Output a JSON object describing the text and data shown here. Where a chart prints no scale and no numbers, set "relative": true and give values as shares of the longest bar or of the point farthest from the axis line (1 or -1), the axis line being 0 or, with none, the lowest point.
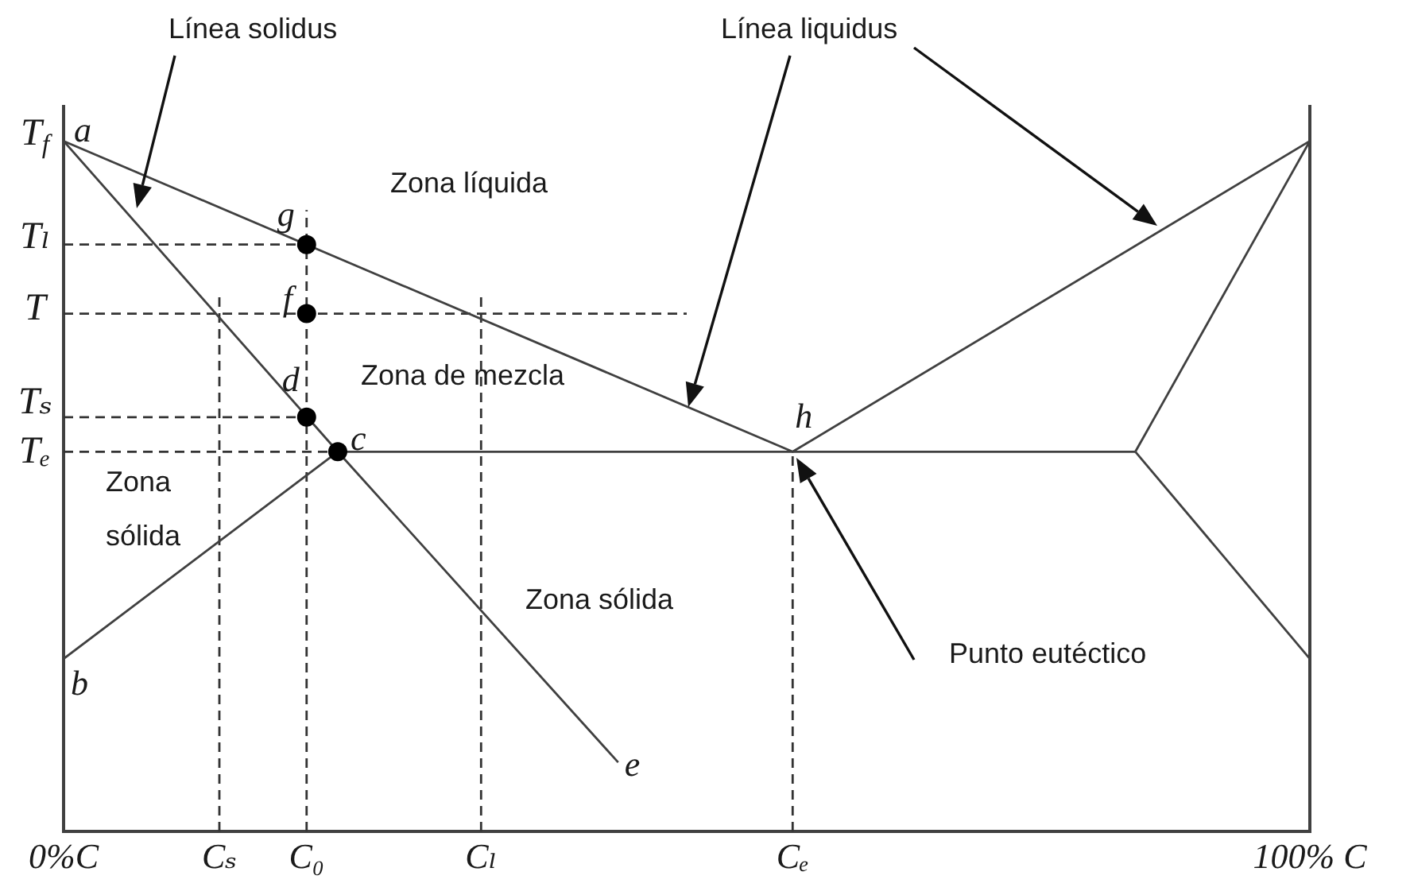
{
  "chart_data": {
    "type": "line",
    "relative": true,
    "xlim": [
      0,
      100
    ],
    "xticks": [
      {
        "value": 0,
        "label": "0%C"
      },
      {
        "value": 12.5,
        "label": "Cₛ"
      },
      {
        "value": 19.5,
        "label": "C₀"
      },
      {
        "value": 33.5,
        "label": "Cₗ"
      },
      {
        "value": 58.5,
        "label": "Cₑ"
      },
      {
        "value": 100,
        "label": "100% C"
      }
    ],
    "series": [
      {
        "color": "#404040",
        "x": [
          0,
          58.5,
          100
        ],
        "values": [
          1,
          0.55,
          1
        ]
      },
      {
        "color": "#404040",
        "x": [
          0,
          22,
          44.5
        ],
        "values": [
          1,
          0.55,
          0.1
        ]
      },
      {
        "color": "#404040",
        "x": [
          0,
          22,
          86
        ],
        "values": [
          0.25,
          0.55,
          0.55
        ]
      },
      {
        "color": "#404040",
        "x": [
          86,
          100
        ],
        "values": [
          0.55,
          1
        ]
      },
      {
        "color": "#404040",
        "x": [
          86,
          100
        ],
        "values": [
          0.55,
          0.25
        ]
      },
      {
        "color": "#333333",
        "line_style": "dashed",
        "x": [
          0,
          19.5
        ],
        "values": [
          0.85,
          0.85
        ]
      },
      {
        "color": "#333333",
        "line_style": "dashed",
        "x": [
          0,
          50
        ],
        "values": [
          0.75,
          0.75
        ]
      },
      {
        "color": "#333333",
        "line_style": "dashed",
        "x": [
          0,
          19.5
        ],
        "values": [
          0.6,
          0.6
        ]
      },
      {
        "color": "#333333",
        "line_style": "dashed",
        "x": [
          0,
          22
        ],
        "values": [
          0.55,
          0.55
        ]
      },
      {
        "color": "#333333",
        "line_style": "dashed",
        "x": [
          12.5,
          12.5
        ],
        "values": [
          0,
          0.78
        ]
      },
      {
        "color": "#333333",
        "line_style": "dashed",
        "x": [
          19.5,
          19.5
        ],
        "values": [
          0,
          0.9
        ]
      },
      {
        "color": "#333333",
        "line_style": "dashed",
        "x": [
          33.5,
          33.5
        ],
        "values": [
          0,
          0.78
        ]
      },
      {
        "color": "#333333",
        "line_style": "dashed",
        "x": [
          58.5,
          58.5
        ],
        "values": [
          0,
          0.55
        ]
      },
      {
        "type": "scatter",
        "color": "#000000",
        "marker": "circle",
        "x": [
          19.5,
          19.5,
          19.5,
          22
        ],
        "values": [
          0.85,
          0.75,
          0.6,
          0.55
        ]
      }
    ],
    "annotations": [
      "Línea solidus",
      "Línea liquidus",
      {
        "text": "T$_{f}$",
        "x": 0,
        "y": 1
      },
      {
        "text": "Tₗ",
        "x": 0,
        "y": 0.85
      },
      {
        "text": "T",
        "x": 0,
        "y": 0.75
      },
      {
        "text": "Tₛ",
        "x": 0,
        "y": 0.6
      },
      {
        "text": "Tₑ",
        "x": 0,
        "y": 0.55
      },
      {
        "text": "a",
        "x": 0,
        "y": 1
      },
      {
        "text": "g",
        "x": 19.5,
        "y": 0.85
      },
      {
        "text": "f",
        "x": 19.5,
        "y": 0.75
      },
      {
        "text": "d",
        "x": 19.5,
        "y": 0.6
      },
      {
        "text": "c",
        "x": 22,
        "y": 0.55
      },
      {
        "text": "h",
        "x": 58.5,
        "y": 0.55
      },
      {
        "text": "b",
        "x": 0,
        "y": 0.25
      },
      {
        "text": "e",
        "x": 44.5,
        "y": 0.1
      },
      "Zona líquida",
      "Zona de mezcla",
      "Zona sólida",
      "Zona sólida",
      "Punto eutéctico"
    ]
  }
}
